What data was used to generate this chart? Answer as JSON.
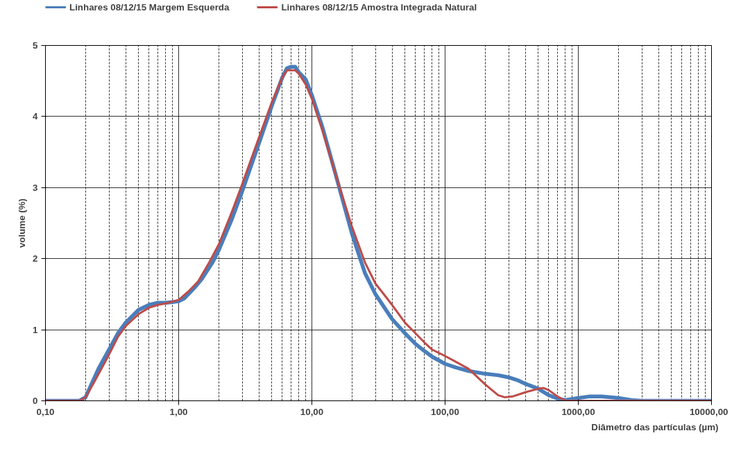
{
  "chart_data": {
    "type": "line",
    "xlabel": "Diâmetro das partículas (µm)",
    "ylabel": "volume (%)",
    "log": "x",
    "grid": true,
    "legend": "top",
    "marker": "none",
    "line_style": "solid",
    "xlim": [
      0.1,
      10000
    ],
    "xticks": [
      {
        "value": 0.1,
        "label": "0,10"
      },
      {
        "value": 1,
        "label": "1,00"
      },
      {
        "value": 10,
        "label": "10,00"
      },
      {
        "value": 100,
        "label": "100,00"
      },
      {
        "value": 1000,
        "label": "1000,00"
      },
      {
        "value": 10000,
        "label": "10000,00"
      }
    ],
    "ylim": [
      0,
      5
    ],
    "yticks": [
      0,
      1,
      2,
      3,
      4,
      5
    ],
    "series": [
      {
        "name": "Linhares 08/12/15 Margem Esquerda",
        "color": "#4a7ebb",
        "x": [
          0.1,
          0.18,
          0.2,
          0.25,
          0.3,
          0.35,
          0.4,
          0.5,
          0.6,
          0.7,
          0.8,
          0.9,
          1.0,
          1.1,
          1.3,
          1.5,
          1.8,
          2,
          2.5,
          3,
          4,
          5,
          6,
          6.5,
          7,
          7.5,
          8,
          9,
          10,
          12,
          15,
          20,
          25,
          30,
          40,
          50,
          60,
          70,
          80,
          100,
          120,
          150,
          200,
          250,
          300,
          350,
          400,
          500,
          600,
          700,
          800,
          1000,
          1200,
          1500,
          2000,
          2500,
          3000,
          10000
        ],
        "values": [
          0,
          0,
          0.05,
          0.45,
          0.72,
          0.95,
          1.1,
          1.28,
          1.35,
          1.38,
          1.38,
          1.39,
          1.4,
          1.44,
          1.58,
          1.72,
          1.95,
          2.12,
          2.55,
          2.95,
          3.62,
          4.15,
          4.55,
          4.68,
          4.7,
          4.7,
          4.62,
          4.52,
          4.3,
          3.85,
          3.2,
          2.35,
          1.8,
          1.5,
          1.15,
          0.95,
          0.8,
          0.7,
          0.62,
          0.52,
          0.47,
          0.42,
          0.38,
          0.36,
          0.33,
          0.29,
          0.24,
          0.17,
          0.08,
          0.03,
          0.01,
          0.04,
          0.06,
          0.06,
          0.04,
          0.01,
          0,
          0
        ]
      },
      {
        "name": "Linhares 08/12/15 Amostra Integrada Natural",
        "color": "#be4b48",
        "x": [
          0.1,
          0.18,
          0.2,
          0.23,
          0.3,
          0.35,
          0.4,
          0.5,
          0.6,
          0.7,
          0.8,
          1.0,
          1.2,
          1.4,
          1.7,
          2,
          2.5,
          3,
          4,
          5,
          6,
          6.5,
          7.5,
          8,
          9,
          10,
          12,
          15,
          20,
          25,
          30,
          40,
          50,
          60,
          70,
          80,
          100,
          120,
          150,
          200,
          250,
          280,
          320,
          400,
          500,
          550,
          600,
          700,
          800,
          10000
        ],
        "values": [
          0,
          0,
          0.05,
          0.25,
          0.65,
          0.9,
          1.05,
          1.22,
          1.31,
          1.35,
          1.37,
          1.42,
          1.55,
          1.68,
          1.95,
          2.2,
          2.65,
          3.05,
          3.7,
          4.2,
          4.55,
          4.65,
          4.65,
          4.6,
          4.45,
          4.25,
          3.8,
          3.2,
          2.45,
          1.95,
          1.65,
          1.35,
          1.1,
          0.95,
          0.82,
          0.72,
          0.63,
          0.55,
          0.45,
          0.23,
          0.08,
          0.05,
          0.06,
          0.12,
          0.17,
          0.18,
          0.15,
          0.06,
          0,
          0
        ]
      }
    ]
  }
}
